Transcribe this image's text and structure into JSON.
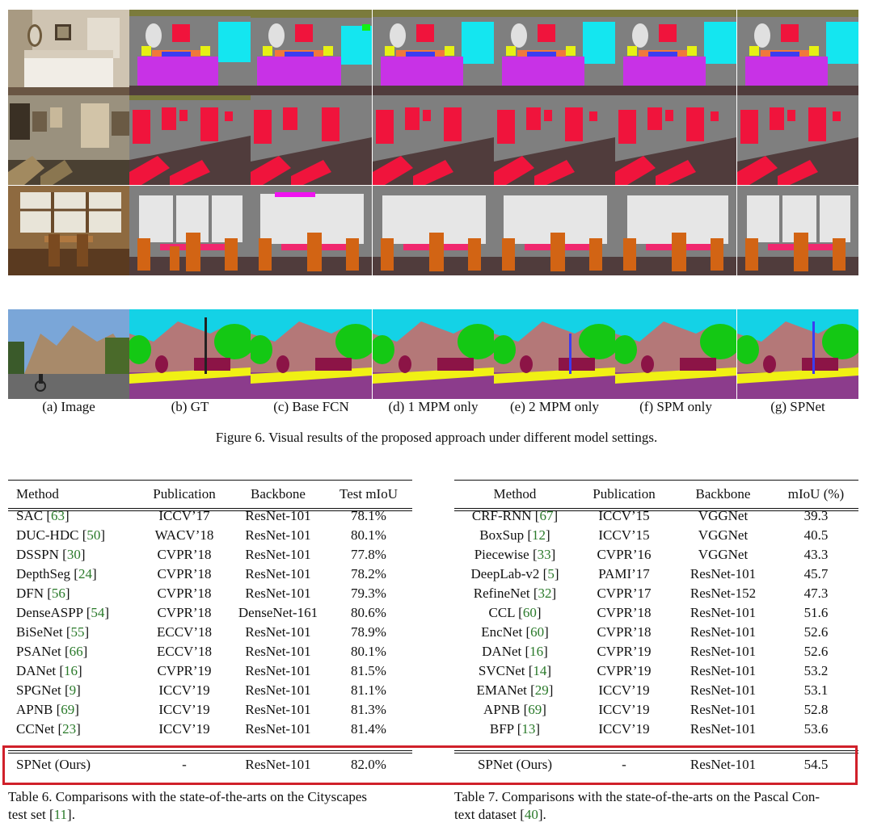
{
  "figure": {
    "caption": "Figure 6. Visual results of the proposed approach under different model settings.",
    "columns": [
      "(a) Image",
      "(b) GT",
      "(c) Base FCN",
      "(d) 1 MPM only",
      "(e) 2 MPM only",
      "(f) SPM only",
      "(g) SPNet"
    ],
    "colors": {
      "wall": "#7f7f7f",
      "bed": "#c832e6",
      "picture": "#f0143c",
      "cyan": "#14e6f0",
      "lamp": "#e6f014",
      "window": "#e6e6e6",
      "floor": "#503c3c",
      "chair": "#d26414",
      "table": "#f0286e",
      "building": "#b47878",
      "tree": "#14c814",
      "road": "#8c3c8c",
      "sky": "#14d2e6",
      "person": "#8c1446",
      "sidewalk": "#f0f014"
    }
  },
  "table6": {
    "headers": [
      "Method",
      "Publication",
      "Backbone",
      "Test mIoU"
    ],
    "rows": [
      [
        "SAC [",
        "63",
        "]",
        "ICCV’17",
        "ResNet-101",
        "78.1%"
      ],
      [
        "DUC-HDC [",
        "50",
        "]",
        "WACV’18",
        "ResNet-101",
        "80.1%"
      ],
      [
        "DSSPN [",
        "30",
        "]",
        "CVPR’18",
        "ResNet-101",
        "77.8%"
      ],
      [
        "DepthSeg [",
        "24",
        "]",
        "CVPR’18",
        "ResNet-101",
        "78.2%"
      ],
      [
        "DFN [",
        "56",
        "]",
        "CVPR’18",
        "ResNet-101",
        "79.3%"
      ],
      [
        "DenseASPP [",
        "54",
        "]",
        "CVPR’18",
        "DenseNet-161",
        "80.6%"
      ],
      [
        "BiSeNet [",
        "55",
        "]",
        "ECCV’18",
        "ResNet-101",
        "78.9%"
      ],
      [
        "PSANet [",
        "66",
        "]",
        "ECCV’18",
        "ResNet-101",
        "80.1%"
      ],
      [
        "DANet [",
        "16",
        "]",
        "CVPR’19",
        "ResNet-101",
        "81.5%"
      ],
      [
        "SPGNet [",
        "9",
        "]",
        "ICCV’19",
        "ResNet-101",
        "81.1%"
      ],
      [
        "APNB [",
        "69",
        "]",
        "ICCV’19",
        "ResNet-101",
        "81.3%"
      ],
      [
        "CCNet [",
        "23",
        "]",
        "ICCV’19",
        "ResNet-101",
        "81.4%"
      ]
    ],
    "ours": [
      "SPNet (Ours)",
      "-",
      "ResNet-101",
      "82.0%"
    ],
    "caption_a": "Table 6. Comparisons with the state-of-the-arts on the Cityscapes",
    "caption_b1": "test set [",
    "caption_cite": "11",
    "caption_b2": "]."
  },
  "table7": {
    "headers": [
      "Method",
      "Publication",
      "Backbone",
      "mIoU (%)"
    ],
    "rows": [
      [
        "CRF-RNN [",
        "67",
        "]",
        "ICCV’15",
        "VGGNet",
        "39.3"
      ],
      [
        "BoxSup [",
        "12",
        "]",
        "ICCV’15",
        "VGGNet",
        "40.5"
      ],
      [
        "Piecewise [",
        "33",
        "]",
        "CVPR’16",
        "VGGNet",
        "43.3"
      ],
      [
        "DeepLab-v2 [",
        "5",
        "]",
        "PAMI’17",
        "ResNet-101",
        "45.7"
      ],
      [
        "RefineNet [",
        "32",
        "]",
        "CVPR’17",
        "ResNet-152",
        "47.3"
      ],
      [
        "CCL [",
        "60",
        "]",
        "CVPR’18",
        "ResNet-101",
        "51.6"
      ],
      [
        "EncNet [",
        "60",
        "]",
        "CVPR’18",
        "ResNet-101",
        "52.6"
      ],
      [
        "DANet [",
        "16",
        "]",
        "CVPR’19",
        "ResNet-101",
        "52.6"
      ],
      [
        "SVCNet [",
        "14",
        "]",
        "CVPR’19",
        "ResNet-101",
        "53.2"
      ],
      [
        "EMANet [",
        "29",
        "]",
        "ICCV’19",
        "ResNet-101",
        "53.1"
      ],
      [
        "APNB [",
        "69",
        "]",
        "ICCV’19",
        "ResNet-101",
        "52.8"
      ],
      [
        "BFP [",
        "13",
        "]",
        "ICCV’19",
        "ResNet-101",
        "53.6"
      ]
    ],
    "ours": [
      "SPNet (Ours)",
      "-",
      "ResNet-101",
      "54.5"
    ],
    "caption_a": "Table 7. Comparisons with the state-of-the-arts on the Pascal Con-",
    "caption_b1": "text dataset [",
    "caption_cite": "40",
    "caption_b2": "]."
  }
}
